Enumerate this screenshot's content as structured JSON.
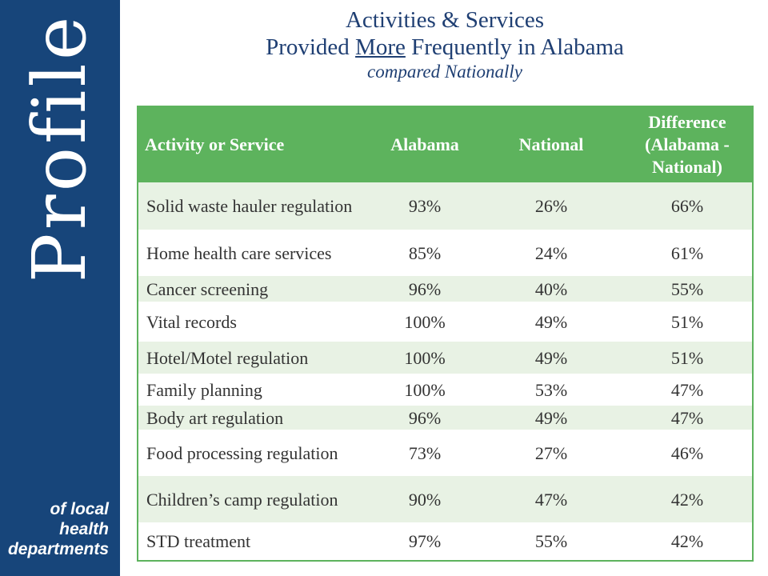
{
  "sidebar": {
    "word": "Profile",
    "tagline": [
      "of local",
      "health",
      "departments"
    ]
  },
  "title": {
    "line1": "Activities & Services",
    "line2_pre": "Provided ",
    "line2_underlined": "More",
    "line2_post": " Frequently in Alabama",
    "subtitle": "compared Nationally"
  },
  "table": {
    "headers": [
      "Activity or Service",
      "Alabama",
      "National",
      "Difference (Alabama - National)"
    ],
    "rows": [
      {
        "activity": "Solid waste hauler regulation",
        "alabama": "93%",
        "national": "26%",
        "difference": "66%"
      },
      {
        "activity": "Home health care services",
        "alabama": "85%",
        "national": "24%",
        "difference": "61%"
      },
      {
        "activity": "Cancer screening",
        "alabama": "96%",
        "national": "40%",
        "difference": "55%"
      },
      {
        "activity": "Vital records",
        "alabama": "100%",
        "national": "49%",
        "difference": "51%"
      },
      {
        "activity": "Hotel/Motel regulation",
        "alabama": "100%",
        "national": "49%",
        "difference": "51%"
      },
      {
        "activity": "Family planning",
        "alabama": "100%",
        "national": "53%",
        "difference": "47%"
      },
      {
        "activity": "Body art regulation",
        "alabama": "96%",
        "national": "49%",
        "difference": "47%"
      },
      {
        "activity": "Food processing regulation",
        "alabama": "73%",
        "national": "27%",
        "difference": "46%"
      },
      {
        "activity": "Children’s camp regulation",
        "alabama": "90%",
        "national": "47%",
        "difference": "42%"
      },
      {
        "activity": "STD treatment",
        "alabama": "97%",
        "national": "55%",
        "difference": "42%"
      }
    ]
  },
  "colors": {
    "sidebar": "#17457a",
    "header": "#5db35d",
    "row_shade": "#e8f2e4",
    "title": "#1f3f73"
  }
}
